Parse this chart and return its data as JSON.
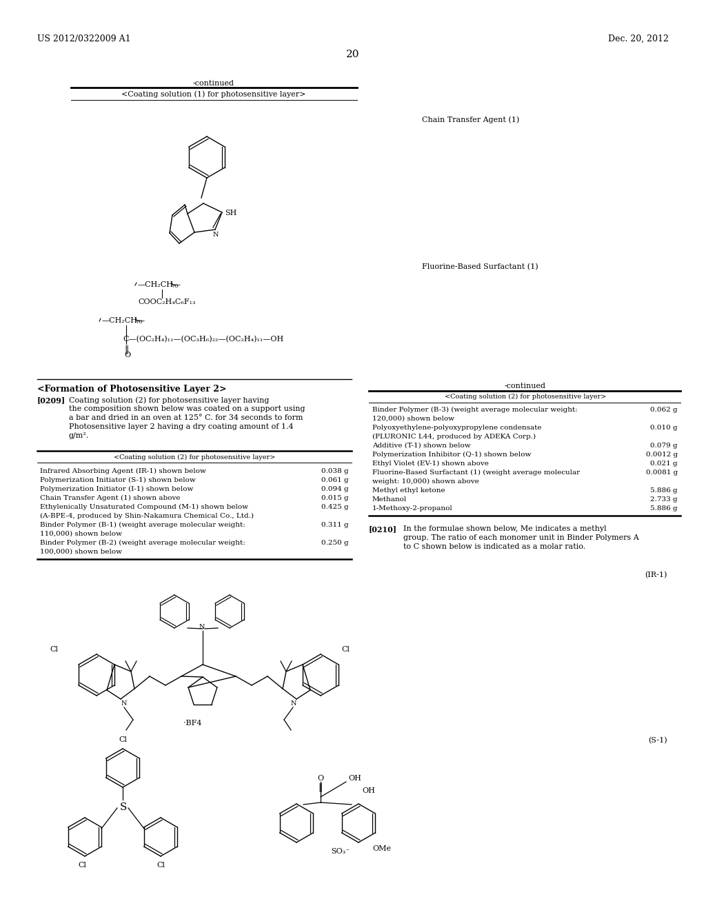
{
  "bg_color": "#ffffff",
  "header_left": "US 2012/0322009 A1",
  "header_right": "Dec. 20, 2012",
  "page_number": "20",
  "continued_top": "-continued",
  "table1_title": "<Coating solution (1) for photosensitive layer>",
  "chain_transfer_label": "Chain Transfer Agent (1)",
  "fluorine_label": "Fluorine-Based Surfactant (1)",
  "section_title": "<Formation of Photosensitive Layer 2>",
  "continued_right": "-continued",
  "table2_left_title": "<Coating solution (2) for photosensitive layer>",
  "table2_right_title": "<Coating solution (2) for photosensitive layer>",
  "para0209_label": "[0209]",
  "para0209_lines": [
    "Coating solution (2) for photosensitive layer having",
    "the composition shown below was coated on a support using",
    "a bar and dried in an oven at 125° C. for 34 seconds to form",
    "Photosensitive layer 2 having a dry coating amount of 1.4",
    "g/m²."
  ],
  "table2_left_rows": [
    [
      "Infrared Absorbing Agent (IR-1) shown below",
      "0.038 g"
    ],
    [
      "Polymerization Initiator (S-1) shown below",
      "0.061 g"
    ],
    [
      "Polymerization Initiator (I-1) shown below",
      "0.094 g"
    ],
    [
      "Chain Transfer Agent (1) shown above",
      "0.015 g"
    ],
    [
      "Ethylenically Unsaturated Compound (M-1) shown below",
      "0.425 g"
    ],
    [
      "(A-BPE-4, produced by Shin-Nakamura Chemical Co., Ltd.)",
      ""
    ],
    [
      "Binder Polymer (B-1) (weight average molecular weight:",
      "0.311 g"
    ],
    [
      "110,000) shown below",
      ""
    ],
    [
      "Binder Polymer (B-2) (weight average molecular weight:",
      "0.250 g"
    ],
    [
      "100,000) shown below",
      ""
    ]
  ],
  "table2_right_rows": [
    [
      "Binder Polymer (B-3) (weight average molecular weight:",
      "0.062 g"
    ],
    [
      "120,000) shown below",
      ""
    ],
    [
      "Polyoxyethylene-polyoxypropylene condensate",
      "0.010 g"
    ],
    [
      "(PLURONIC L44, produced by ADEKA Corp.)",
      ""
    ],
    [
      "Additive (T-1) shown below",
      "0.079 g"
    ],
    [
      "Polymerization Inhibitor (Q-1) shown below",
      "0.0012 g"
    ],
    [
      "Ethyl Violet (EV-1) shown above",
      "0.021 g"
    ],
    [
      "Fluorine-Based Surfactant (1) (weight average molecular",
      "0.0081 g"
    ],
    [
      "weight: 10,000) shown above",
      ""
    ],
    [
      "Methyl ethyl ketone",
      "5.886 g"
    ],
    [
      "Methanol",
      "2.733 g"
    ],
    [
      "1-Methoxy-2-propanol",
      "5.886 g"
    ]
  ],
  "para0210_label": "[0210]",
  "para0210_lines": [
    "In the formulae shown below, Me indicates a methyl",
    "group. The ratio of each monomer unit in Binder Polymers A",
    "to C shown below is indicated as a molar ratio."
  ],
  "ir1_label": "(IR-1)",
  "s1_label": "(S-1)",
  "fs_hdr": 9,
  "fs_body": 8,
  "fs_table": 7.5,
  "fs_small": 7,
  "lh": 13
}
